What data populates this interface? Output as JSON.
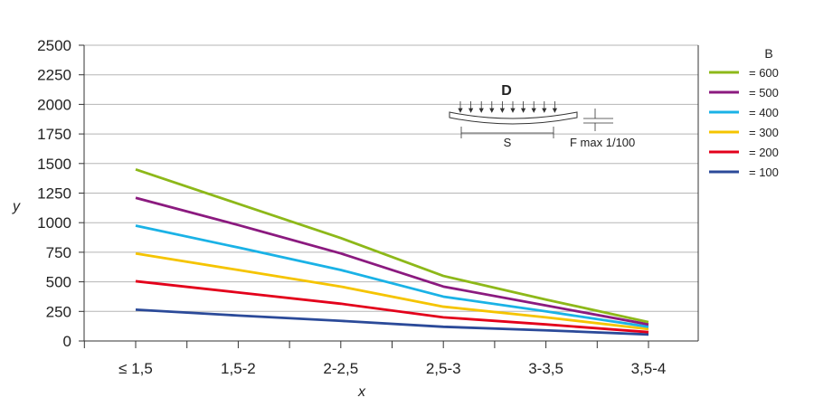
{
  "chart_data": {
    "type": "line",
    "title": "",
    "xlabel": "x",
    "ylabel": "y",
    "categories": [
      "≤ 1,5",
      "1,5-2",
      "2-2,5",
      "2,5-3",
      "3-3,5",
      "3,5-4"
    ],
    "ylim": [
      0,
      2500
    ],
    "yticks": [
      0,
      250,
      500,
      750,
      1000,
      1250,
      1500,
      1750,
      2000,
      2250,
      2500
    ],
    "grid": true,
    "legend": {
      "title": "B",
      "placement": "right"
    },
    "series": [
      {
        "name": "600",
        "label": "= 600",
        "color": "#8DB819",
        "values": [
          1450,
          1160,
          870,
          550,
          350,
          160
        ]
      },
      {
        "name": "500",
        "label": "= 500",
        "color": "#8B1A7F",
        "values": [
          1210,
          980,
          740,
          460,
          300,
          140
        ]
      },
      {
        "name": "400",
        "label": "= 400",
        "color": "#1AB2E6",
        "values": [
          975,
          790,
          600,
          375,
          250,
          120
        ]
      },
      {
        "name": "300",
        "label": "= 300",
        "color": "#F5C400",
        "values": [
          740,
          600,
          460,
          290,
          200,
          100
        ]
      },
      {
        "name": "200",
        "label": "= 200",
        "color": "#E3001B",
        "values": [
          505,
          410,
          315,
          200,
          140,
          75
        ]
      },
      {
        "name": "100",
        "label": "= 100",
        "color": "#2B4A99",
        "values": [
          265,
          215,
          170,
          120,
          90,
          55
        ]
      }
    ],
    "inset": {
      "title": "D",
      "span_label": "S",
      "deflection_label": "F max 1/100"
    }
  }
}
